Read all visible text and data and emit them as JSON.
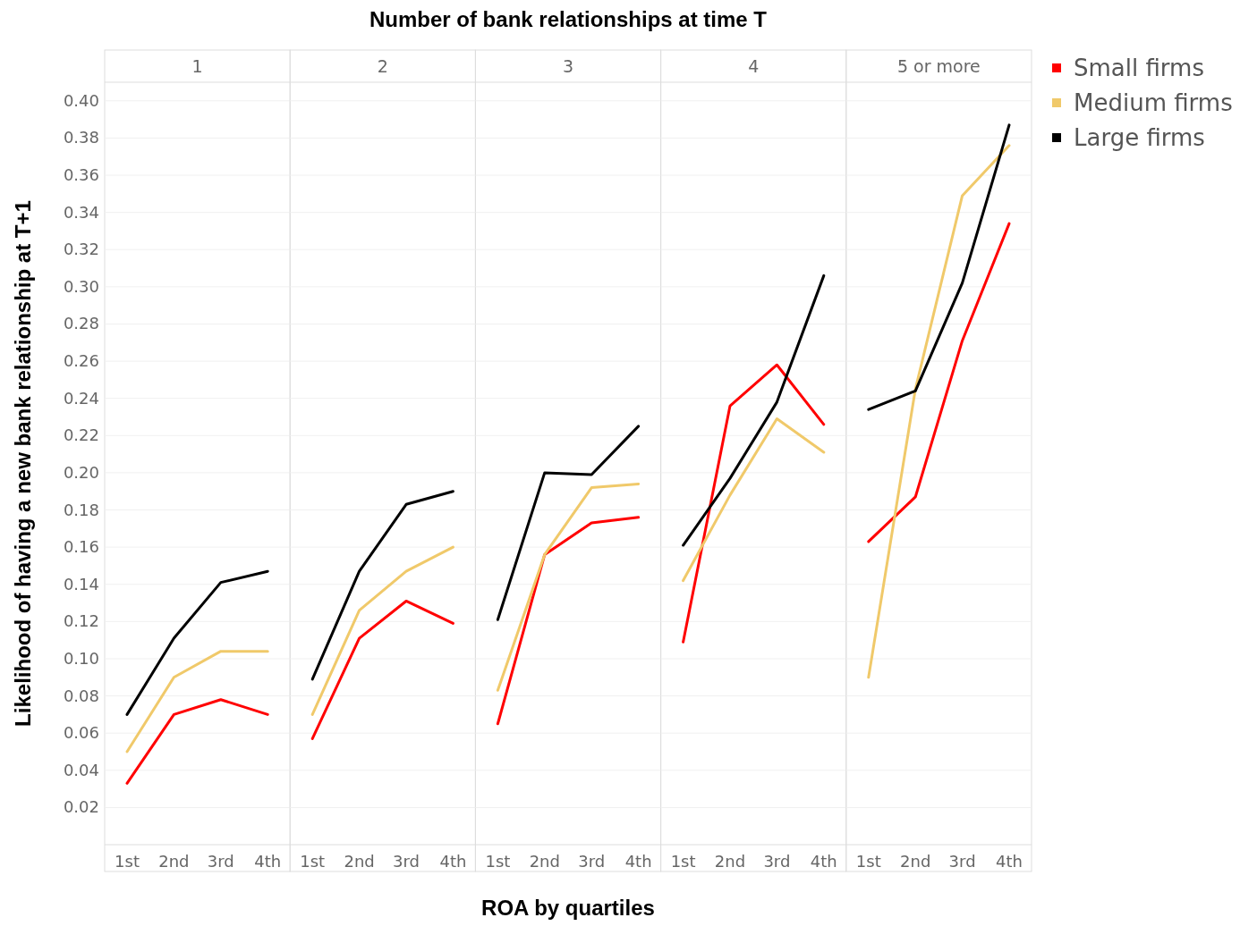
{
  "chart_data": [
    {
      "type": "line",
      "subtitle": "1",
      "ylabel": "Likelihood of having a new bank relationship at T+1",
      "categories": [
        "1st",
        "2nd",
        "3rd",
        "4th"
      ],
      "ylim": [
        0,
        0.41
      ],
      "yticks": [
        {
          "value": 0.02,
          "label": "0.02"
        },
        {
          "value": 0.04,
          "label": "0.04"
        },
        {
          "value": 0.06,
          "label": "0.06"
        },
        {
          "value": 0.08,
          "label": "0.08"
        },
        {
          "value": 0.1,
          "label": "0.10"
        },
        {
          "value": 0.12,
          "label": "0.12"
        },
        {
          "value": 0.14,
          "label": "0.14"
        },
        {
          "value": 0.16,
          "label": "0.16"
        },
        {
          "value": 0.18,
          "label": "0.18"
        },
        {
          "value": 0.2,
          "label": "0.20"
        },
        {
          "value": 0.22,
          "label": "0.22"
        },
        {
          "value": 0.24,
          "label": "0.24"
        },
        {
          "value": 0.26,
          "label": "0.26"
        },
        {
          "value": 0.28,
          "label": "0.28"
        },
        {
          "value": 0.3,
          "label": "0.30"
        },
        {
          "value": 0.32,
          "label": "0.32"
        },
        {
          "value": 0.34,
          "label": "0.34"
        },
        {
          "value": 0.36,
          "label": "0.36"
        },
        {
          "value": 0.38,
          "label": "0.38"
        },
        {
          "value": 0.4,
          "label": "0.40"
        }
      ],
      "grid": "y",
      "legend": false,
      "series": [
        {
          "color": "#ff0000",
          "values": [
            0.033,
            0.07,
            0.078,
            0.07
          ]
        },
        {
          "color": "#f0c96a",
          "values": [
            0.05,
            0.09,
            0.104,
            0.104
          ]
        },
        {
          "color": "#000000",
          "values": [
            0.07,
            0.111,
            0.141,
            0.147
          ]
        }
      ]
    },
    {
      "type": "line",
      "subtitle": "2",
      "categories": [
        "1st",
        "2nd",
        "3rd",
        "4th"
      ],
      "ylim": [
        0,
        0.41
      ],
      "tick_labels": "x",
      "grid": "y",
      "legend": false,
      "series": [
        {
          "color": "#ff0000",
          "values": [
            0.057,
            0.111,
            0.131,
            0.119
          ]
        },
        {
          "color": "#f0c96a",
          "values": [
            0.07,
            0.126,
            0.147,
            0.16
          ]
        },
        {
          "color": "#000000",
          "values": [
            0.089,
            0.147,
            0.183,
            0.19
          ]
        }
      ]
    },
    {
      "type": "line",
      "title": "Number of bank relationships at time T",
      "subtitle": "3",
      "xlabel": "ROA by quartiles",
      "categories": [
        "1st",
        "2nd",
        "3rd",
        "4th"
      ],
      "ylim": [
        0,
        0.41
      ],
      "tick_labels": "x",
      "grid": "y",
      "legend": false,
      "series": [
        {
          "color": "#ff0000",
          "values": [
            0.065,
            0.156,
            0.173,
            0.176
          ]
        },
        {
          "color": "#f0c96a",
          "values": [
            0.083,
            0.156,
            0.192,
            0.194
          ]
        },
        {
          "color": "#000000",
          "values": [
            0.121,
            0.2,
            0.199,
            0.225
          ]
        }
      ]
    },
    {
      "type": "line",
      "subtitle": "4",
      "categories": [
        "1st",
        "2nd",
        "3rd",
        "4th"
      ],
      "ylim": [
        0,
        0.41
      ],
      "tick_labels": "x",
      "grid": "y",
      "legend": false,
      "series": [
        {
          "color": "#ff0000",
          "values": [
            0.109,
            0.236,
            0.258,
            0.226
          ]
        },
        {
          "color": "#f0c96a",
          "values": [
            0.142,
            0.188,
            0.229,
            0.211
          ]
        },
        {
          "color": "#000000",
          "values": [
            0.161,
            0.197,
            0.238,
            0.306
          ]
        }
      ]
    },
    {
      "type": "line",
      "subtitle": "5 or more",
      "categories": [
        "1st",
        "2nd",
        "3rd",
        "4th"
      ],
      "ylim": [
        0,
        0.41
      ],
      "tick_labels": "x",
      "grid": "y",
      "legend": "right",
      "series": [
        {
          "name": "Small firms",
          "color": "#ff0000",
          "values": [
            0.163,
            0.187,
            0.271,
            0.334
          ]
        },
        {
          "name": "Medium firms",
          "color": "#f0c96a",
          "values": [
            0.09,
            0.245,
            0.349,
            0.376
          ]
        },
        {
          "name": "Large firms",
          "color": "#000000",
          "values": [
            0.234,
            0.244,
            0.302,
            0.387
          ]
        }
      ]
    }
  ]
}
